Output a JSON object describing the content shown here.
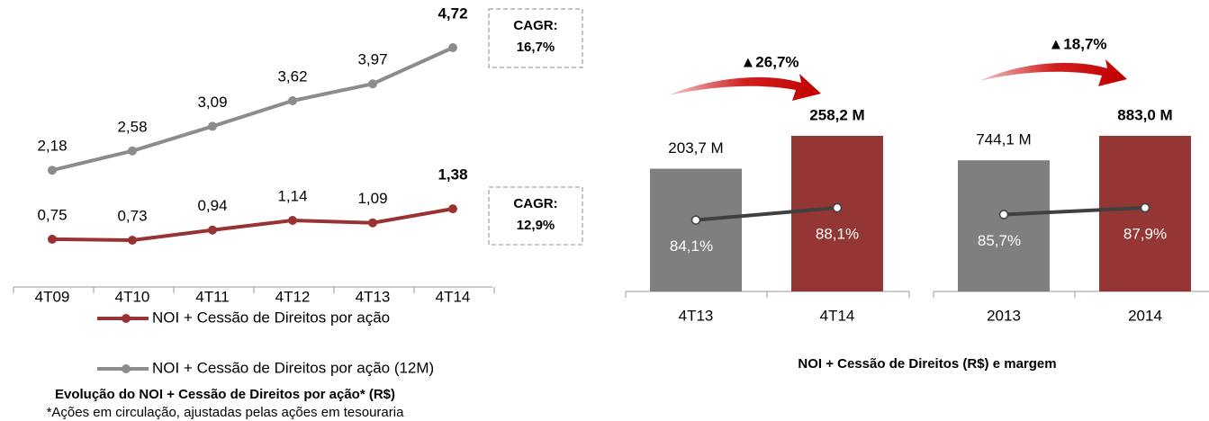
{
  "chart_data": [
    {
      "type": "line",
      "title": "Evolução do NOI + Cessão de Direitos por ação* (R$)",
      "footnote": "*Ações em circulação, ajustadas pelas ações em tesouraria",
      "categories": [
        "4T09",
        "4T10",
        "4T11",
        "4T12",
        "4T13",
        "4T14"
      ],
      "series": [
        {
          "name": "NOI + Cessão de Direitos por ação",
          "color": "#993333",
          "values": [
            0.75,
            0.73,
            0.94,
            1.14,
            1.09,
            1.38
          ],
          "value_labels": [
            "0,75",
            "0,73",
            "0,94",
            "1,14",
            "1,09",
            "1,38"
          ]
        },
        {
          "name": "NOI + Cessão de Direitos por ação (12M)",
          "color": "#8c8c8c",
          "values": [
            2.18,
            2.58,
            3.09,
            3.62,
            3.97,
            4.72
          ],
          "value_labels": [
            "2,18",
            "2,58",
            "3,09",
            "3,62",
            "3,97",
            "4,72"
          ]
        }
      ],
      "annotations": [
        [
          "CAGR:",
          "16,7%"
        ],
        [
          "CAGR:",
          "12,9%"
        ]
      ]
    },
    {
      "type": "bar",
      "title": "NOI + Cessão de Direitos (R$) e margem",
      "categories": [
        "4T13",
        "4T14"
      ],
      "values": [
        203.7,
        258.2
      ],
      "value_labels": [
        "203,7 M",
        "258,2 M"
      ],
      "colors": [
        "#7f7f7f",
        "#943634"
      ],
      "margin": {
        "values": [
          84.1,
          88.1
        ],
        "value_labels": [
          "84,1%",
          "88,1%"
        ],
        "color": "#404040"
      },
      "annotation": "▲26,7%"
    },
    {
      "type": "bar",
      "categories": [
        "2013",
        "2014"
      ],
      "values": [
        744.1,
        883.0
      ],
      "value_labels": [
        "744,1 M",
        "883,0 M"
      ],
      "colors": [
        "#7f7f7f",
        "#943634"
      ],
      "margin": {
        "values": [
          85.7,
          87.9
        ],
        "value_labels": [
          "85,7%",
          "87,9%"
        ],
        "color": "#404040"
      },
      "annotation": "▲18,7%"
    }
  ]
}
